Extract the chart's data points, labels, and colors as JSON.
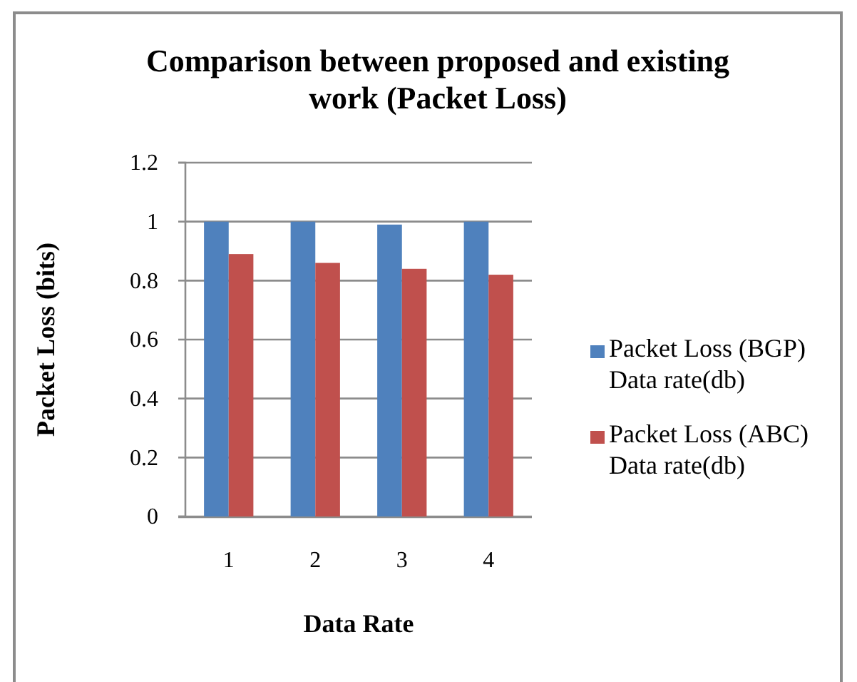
{
  "chart_data": {
    "type": "bar",
    "title": "Comparison between proposed and existing work (Packet Loss)",
    "xlabel": "Data Rate",
    "ylabel": "Packet Loss (bits)",
    "categories": [
      "1",
      "2",
      "3",
      "4"
    ],
    "series": [
      {
        "name": "Packet Loss (BGP) Data rate(db)",
        "color": "#4f81bd",
        "values": [
          1,
          1,
          0.99,
          1
        ]
      },
      {
        "name": "Packet Loss (ABC) Data rate(db)",
        "color": "#c0504d",
        "values": [
          0.89,
          0.86,
          0.84,
          0.82
        ]
      }
    ],
    "ylim": [
      0,
      1.2
    ],
    "yticks": [
      0,
      0.2,
      0.4,
      0.6,
      0.8,
      1,
      1.2
    ],
    "grid": "y",
    "legend": "right"
  }
}
